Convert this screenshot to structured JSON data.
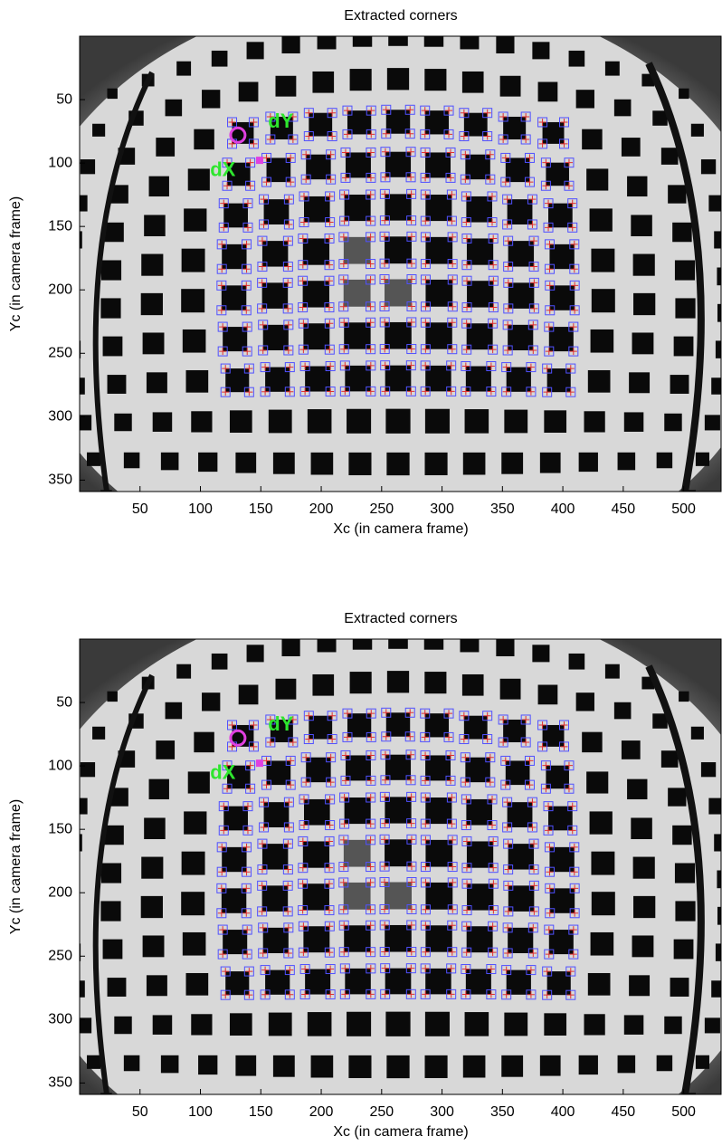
{
  "chart_data": [
    {
      "type": "image",
      "title": "Extracted corners",
      "xlabel": "Xc (in camera frame)",
      "ylabel": "Yc (in camera frame)",
      "xlim": [
        0,
        531
      ],
      "ylim": [
        0,
        359
      ],
      "y_reversed": true,
      "xticks": [
        50,
        100,
        150,
        200,
        250,
        300,
        350,
        400,
        450,
        500
      ],
      "yticks": [
        50,
        100,
        150,
        200,
        250,
        300,
        350
      ],
      "annotations": [
        "dX",
        "dY"
      ]
    },
    {
      "type": "image",
      "title": "Extracted corners",
      "xlabel": "Xc (in camera frame)",
      "ylabel": "Yc (in camera frame)",
      "xlim": [
        0,
        531
      ],
      "ylim": [
        0,
        359
      ],
      "y_reversed": true,
      "xticks": [
        50,
        100,
        150,
        200,
        250,
        300,
        350,
        400,
        450,
        500
      ],
      "yticks": [
        50,
        100,
        150,
        200,
        250,
        300,
        350
      ],
      "annotations": [
        "dX",
        "dY"
      ]
    }
  ]
}
